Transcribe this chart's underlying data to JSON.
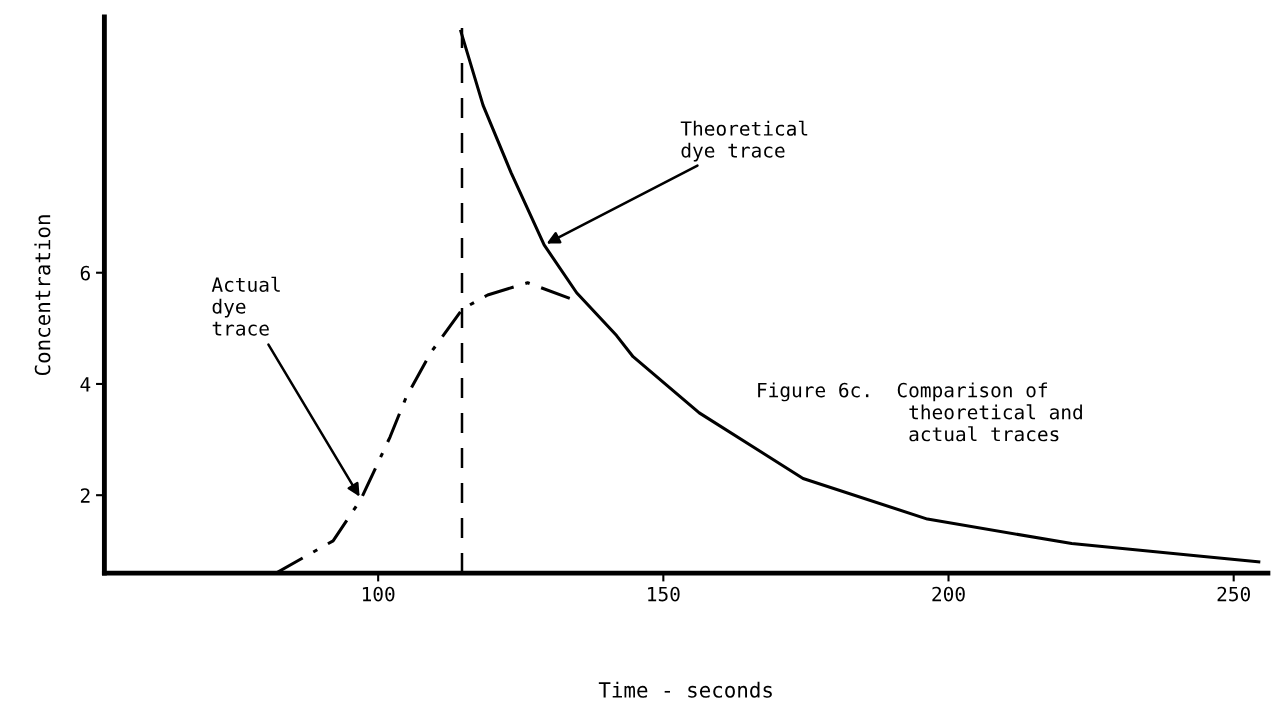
{
  "chart_data": {
    "type": "line",
    "xlabel": "Time - seconds",
    "ylabel": "Concentration",
    "xlim": [
      52,
      256
    ],
    "xticks": [
      100,
      150,
      200,
      250
    ],
    "ylim": [
      0.6,
      10.6
    ],
    "yticks": [
      2,
      4,
      6
    ],
    "grid": false,
    "legend": false,
    "marker": "none",
    "series": [
      {
        "color": "#000000",
        "line_style": "solid",
        "x": [
          114.5,
          118.4,
          123.3,
          129.1,
          134.8,
          141.8,
          144.7,
          156.3,
          174.5,
          196.3,
          221.6,
          243.4,
          254.4
        ],
        "values": [
          10.34,
          9.01,
          7.8,
          6.5,
          5.64,
          4.87,
          4.49,
          3.48,
          2.3,
          1.57,
          1.13,
          0.91,
          0.8
        ]
      },
      {
        "color": "#000000",
        "line_style": "dashdot",
        "x": [
          82.1,
          92.1,
          97.0,
          102.1,
          104.9,
          109.2,
          114.8,
          119.2,
          126.2,
          134.1
        ],
        "values": [
          0.6,
          1.18,
          1.93,
          3.05,
          3.76,
          4.56,
          5.35,
          5.6,
          5.82,
          5.52
        ]
      }
    ],
    "ref_lines": [
      {
        "axis": "x",
        "value": 114.7,
        "label": null,
        "color": "#000000",
        "line_style": "dashed"
      }
    ],
    "annotations": [
      {
        "text": "Theoretical\ndye trace",
        "x": 129.1,
        "y": 6.5
      },
      {
        "text": "Actual\ndye\ntrace",
        "x": 97.0,
        "y": 1.93
      },
      "Figure 6c.  Comparison of\n             theoretical and\n             actual traces"
    ]
  }
}
